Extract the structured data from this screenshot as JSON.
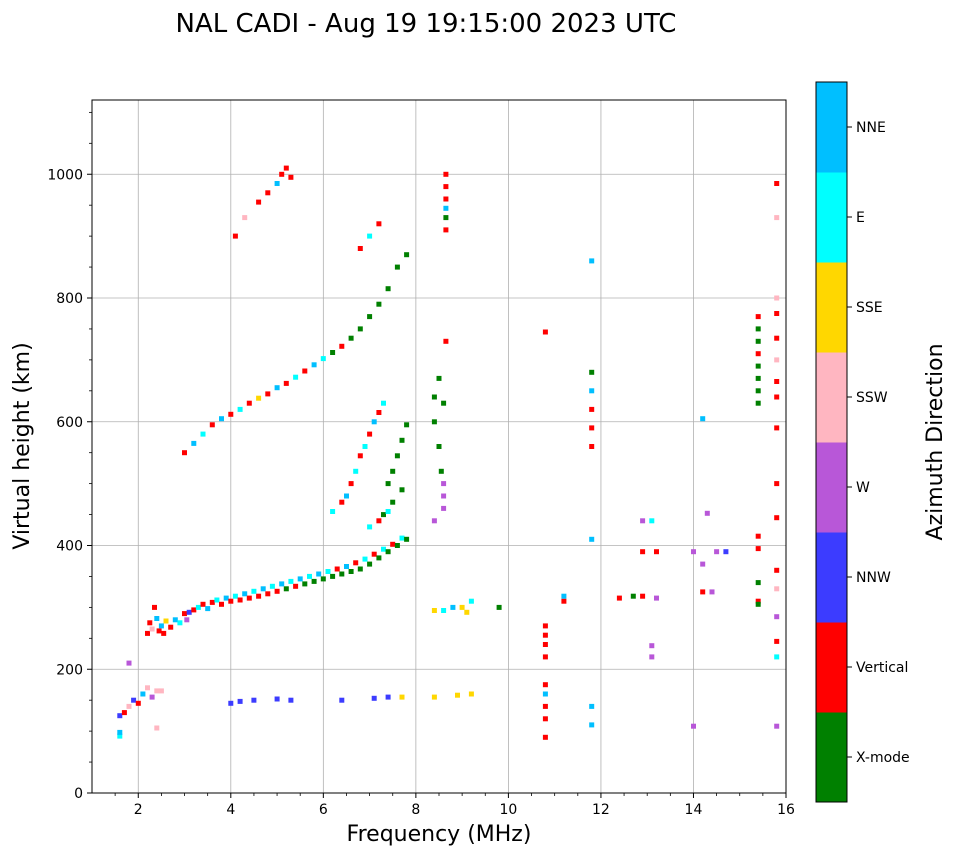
{
  "chart_data": {
    "type": "scatter",
    "title": "NAL CADI - Aug 19 19:15:00 2023 UTC",
    "xlabel": "Frequency (MHz)",
    "ylabel": "Virtual height (km)",
    "xlim": [
      1,
      16
    ],
    "ylim": [
      0,
      1120
    ],
    "xticks": [
      2,
      4,
      6,
      8,
      10,
      12,
      14,
      16
    ],
    "yticks": [
      0,
      200,
      400,
      600,
      800,
      1000
    ],
    "grid": true,
    "colorbar": {
      "title": "Azimuth Direction",
      "entries": [
        {
          "label": "X-mode",
          "color": "#008000"
        },
        {
          "label": "Vertical",
          "color": "#ff0000"
        },
        {
          "label": "NNW",
          "color": "#3c3cff"
        },
        {
          "label": "W",
          "color": "#b857d8"
        },
        {
          "label": "SSW",
          "color": "#ffb6c1"
        },
        {
          "label": "SSE",
          "color": "#ffd700"
        },
        {
          "label": "E",
          "color": "#00ffff"
        },
        {
          "label": "NNE",
          "color": "#00bfff"
        }
      ]
    },
    "points": [
      [
        1.6,
        92,
        "E"
      ],
      [
        1.6,
        98,
        "NNE"
      ],
      [
        1.6,
        125,
        "NNW"
      ],
      [
        1.7,
        130,
        "Vertical"
      ],
      [
        1.8,
        140,
        "SSW"
      ],
      [
        1.9,
        150,
        "NNW"
      ],
      [
        2.0,
        145,
        "Vertical"
      ],
      [
        2.1,
        160,
        "NNE"
      ],
      [
        2.2,
        170,
        "SSW"
      ],
      [
        2.4,
        165,
        "SSW"
      ],
      [
        2.3,
        155,
        "W"
      ],
      [
        2.5,
        165,
        "SSW"
      ],
      [
        2.4,
        105,
        "SSW"
      ],
      [
        1.8,
        210,
        "W"
      ],
      [
        2.2,
        258,
        "Vertical"
      ],
      [
        2.25,
        275,
        "Vertical"
      ],
      [
        2.3,
        265,
        "SSW"
      ],
      [
        2.35,
        300,
        "Vertical"
      ],
      [
        2.4,
        282,
        "NNE"
      ],
      [
        2.45,
        262,
        "Vertical"
      ],
      [
        2.5,
        270,
        "NNE"
      ],
      [
        2.55,
        258,
        "Vertical"
      ],
      [
        2.6,
        278,
        "SSE"
      ],
      [
        2.7,
        268,
        "Vertical"
      ],
      [
        2.8,
        280,
        "NNE"
      ],
      [
        2.9,
        275,
        "E"
      ],
      [
        3.0,
        290,
        "Vertical"
      ],
      [
        3.05,
        280,
        "W"
      ],
      [
        3.1,
        292,
        "NNW"
      ],
      [
        3.2,
        296,
        "Vertical"
      ],
      [
        3.3,
        300,
        "E"
      ],
      [
        3.4,
        305,
        "Vertical"
      ],
      [
        3.5,
        298,
        "NNE"
      ],
      [
        3.6,
        308,
        "Vertical"
      ],
      [
        3.7,
        312,
        "E"
      ],
      [
        3.8,
        305,
        "Vertical"
      ],
      [
        3.9,
        315,
        "NNE"
      ],
      [
        4.0,
        310,
        "Vertical"
      ],
      [
        4.1,
        318,
        "E"
      ],
      [
        4.2,
        312,
        "Vertical"
      ],
      [
        4.3,
        322,
        "NNE"
      ],
      [
        4.4,
        315,
        "Vertical"
      ],
      [
        4.5,
        326,
        "E"
      ],
      [
        4.6,
        318,
        "Vertical"
      ],
      [
        4.7,
        330,
        "NNE"
      ],
      [
        4.8,
        322,
        "Vertical"
      ],
      [
        4.9,
        334,
        "E"
      ],
      [
        5.0,
        326,
        "Vertical"
      ],
      [
        5.1,
        338,
        "NNE"
      ],
      [
        5.2,
        330,
        "X-mode"
      ],
      [
        5.3,
        342,
        "E"
      ],
      [
        5.4,
        334,
        "Vertical"
      ],
      [
        5.5,
        346,
        "NNE"
      ],
      [
        5.6,
        338,
        "X-mode"
      ],
      [
        5.7,
        350,
        "E"
      ],
      [
        5.8,
        342,
        "X-mode"
      ],
      [
        5.9,
        354,
        "NNE"
      ],
      [
        6.0,
        346,
        "X-mode"
      ],
      [
        6.1,
        358,
        "E"
      ],
      [
        6.2,
        350,
        "X-mode"
      ],
      [
        6.3,
        362,
        "Vertical"
      ],
      [
        6.4,
        354,
        "X-mode"
      ],
      [
        6.5,
        366,
        "NNE"
      ],
      [
        6.6,
        358,
        "X-mode"
      ],
      [
        6.7,
        372,
        "Vertical"
      ],
      [
        6.8,
        362,
        "X-mode"
      ],
      [
        6.9,
        378,
        "E"
      ],
      [
        7.0,
        370,
        "X-mode"
      ],
      [
        7.1,
        386,
        "Vertical"
      ],
      [
        7.2,
        380,
        "X-mode"
      ],
      [
        7.3,
        394,
        "E"
      ],
      [
        7.4,
        390,
        "X-mode"
      ],
      [
        7.5,
        402,
        "Vertical"
      ],
      [
        7.6,
        400,
        "X-mode"
      ],
      [
        7.7,
        412,
        "E"
      ],
      [
        7.8,
        410,
        "X-mode"
      ],
      [
        6.2,
        455,
        "E"
      ],
      [
        6.4,
        470,
        "Vertical"
      ],
      [
        6.5,
        480,
        "NNE"
      ],
      [
        6.6,
        500,
        "Vertical"
      ],
      [
        6.7,
        520,
        "E"
      ],
      [
        6.8,
        545,
        "Vertical"
      ],
      [
        6.9,
        560,
        "E"
      ],
      [
        7.0,
        580,
        "Vertical"
      ],
      [
        7.1,
        600,
        "NNE"
      ],
      [
        7.2,
        615,
        "Vertical"
      ],
      [
        7.3,
        630,
        "E"
      ],
      [
        7.4,
        500,
        "X-mode"
      ],
      [
        7.5,
        520,
        "X-mode"
      ],
      [
        7.6,
        545,
        "X-mode"
      ],
      [
        7.7,
        570,
        "X-mode"
      ],
      [
        7.8,
        595,
        "X-mode"
      ],
      [
        7.3,
        450,
        "X-mode"
      ],
      [
        7.5,
        470,
        "X-mode"
      ],
      [
        7.7,
        490,
        "X-mode"
      ],
      [
        7.0,
        430,
        "E"
      ],
      [
        7.2,
        440,
        "Vertical"
      ],
      [
        7.4,
        455,
        "E"
      ],
      [
        3.0,
        550,
        "Vertical"
      ],
      [
        3.2,
        565,
        "NNE"
      ],
      [
        3.4,
        580,
        "E"
      ],
      [
        3.6,
        595,
        "Vertical"
      ],
      [
        3.8,
        605,
        "NNE"
      ],
      [
        4.0,
        612,
        "Vertical"
      ],
      [
        4.2,
        620,
        "E"
      ],
      [
        4.4,
        630,
        "Vertical"
      ],
      [
        4.6,
        638,
        "SSE"
      ],
      [
        4.8,
        645,
        "Vertical"
      ],
      [
        5.0,
        655,
        "NNE"
      ],
      [
        5.2,
        662,
        "Vertical"
      ],
      [
        5.4,
        672,
        "E"
      ],
      [
        5.6,
        682,
        "Vertical"
      ],
      [
        5.8,
        692,
        "NNE"
      ],
      [
        6.0,
        702,
        "E"
      ],
      [
        6.2,
        712,
        "X-mode"
      ],
      [
        6.4,
        722,
        "Vertical"
      ],
      [
        6.6,
        735,
        "X-mode"
      ],
      [
        6.8,
        750,
        "X-mode"
      ],
      [
        7.0,
        770,
        "X-mode"
      ],
      [
        7.2,
        790,
        "X-mode"
      ],
      [
        7.4,
        815,
        "X-mode"
      ],
      [
        7.6,
        850,
        "X-mode"
      ],
      [
        7.8,
        870,
        "X-mode"
      ],
      [
        6.8,
        880,
        "Vertical"
      ],
      [
        7.0,
        900,
        "E"
      ],
      [
        7.2,
        920,
        "Vertical"
      ],
      [
        4.1,
        900,
        "Vertical"
      ],
      [
        4.3,
        930,
        "SSW"
      ],
      [
        4.6,
        955,
        "Vertical"
      ],
      [
        4.8,
        970,
        "Vertical"
      ],
      [
        5.0,
        985,
        "NNE"
      ],
      [
        5.1,
        1000,
        "Vertical"
      ],
      [
        5.2,
        1010,
        "Vertical"
      ],
      [
        5.3,
        995,
        "Vertical"
      ],
      [
        4.0,
        145,
        "NNW"
      ],
      [
        4.2,
        148,
        "NNW"
      ],
      [
        4.5,
        150,
        "NNW"
      ],
      [
        5.0,
        152,
        "NNW"
      ],
      [
        5.3,
        150,
        "NNW"
      ],
      [
        6.4,
        150,
        "NNW"
      ],
      [
        7.1,
        153,
        "NNW"
      ],
      [
        7.4,
        155,
        "NNW"
      ],
      [
        7.7,
        155,
        "SSE"
      ],
      [
        8.4,
        155,
        "SSE"
      ],
      [
        8.9,
        158,
        "SSE"
      ],
      [
        9.2,
        160,
        "SSE"
      ],
      [
        8.6,
        295,
        "E"
      ],
      [
        8.8,
        300,
        "NNE"
      ],
      [
        9.0,
        300,
        "SSE"
      ],
      [
        9.2,
        310,
        "E"
      ],
      [
        8.4,
        295,
        "SSE"
      ],
      [
        9.1,
        292,
        "SSE"
      ],
      [
        9.8,
        300,
        "X-mode"
      ],
      [
        8.4,
        640,
        "X-mode"
      ],
      [
        8.4,
        600,
        "X-mode"
      ],
      [
        8.5,
        560,
        "X-mode"
      ],
      [
        8.55,
        520,
        "X-mode"
      ],
      [
        8.6,
        480,
        "W"
      ],
      [
        8.6,
        460,
        "W"
      ],
      [
        8.4,
        440,
        "W"
      ],
      [
        8.6,
        630,
        "X-mode"
      ],
      [
        8.5,
        670,
        "X-mode"
      ],
      [
        8.6,
        500,
        "W"
      ],
      [
        8.65,
        1000,
        "Vertical"
      ],
      [
        8.65,
        980,
        "Vertical"
      ],
      [
        8.65,
        960,
        "Vertical"
      ],
      [
        8.65,
        945,
        "NNE"
      ],
      [
        8.65,
        930,
        "X-mode"
      ],
      [
        8.65,
        910,
        "Vertical"
      ],
      [
        8.65,
        730,
        "Vertical"
      ],
      [
        10.8,
        270,
        "Vertical"
      ],
      [
        10.8,
        255,
        "Vertical"
      ],
      [
        10.8,
        240,
        "Vertical"
      ],
      [
        10.8,
        220,
        "Vertical"
      ],
      [
        10.8,
        175,
        "Vertical"
      ],
      [
        10.8,
        160,
        "NNE"
      ],
      [
        10.8,
        140,
        "Vertical"
      ],
      [
        10.8,
        120,
        "Vertical"
      ],
      [
        10.8,
        90,
        "Vertical"
      ],
      [
        10.8,
        745,
        "Vertical"
      ],
      [
        11.2,
        310,
        "Vertical"
      ],
      [
        11.2,
        318,
        "NNE"
      ],
      [
        11.8,
        860,
        "NNE"
      ],
      [
        11.8,
        680,
        "X-mode"
      ],
      [
        11.8,
        650,
        "NNE"
      ],
      [
        11.8,
        620,
        "Vertical"
      ],
      [
        11.8,
        590,
        "Vertical"
      ],
      [
        11.8,
        560,
        "Vertical"
      ],
      [
        11.8,
        410,
        "NNE"
      ],
      [
        11.8,
        140,
        "NNE"
      ],
      [
        11.8,
        110,
        "NNE"
      ],
      [
        12.4,
        315,
        "Vertical"
      ],
      [
        12.7,
        318,
        "X-mode"
      ],
      [
        12.9,
        318,
        "Vertical"
      ],
      [
        12.9,
        440,
        "W"
      ],
      [
        12.9,
        390,
        "Vertical"
      ],
      [
        13.2,
        390,
        "Vertical"
      ],
      [
        13.1,
        238,
        "W"
      ],
      [
        13.1,
        220,
        "W"
      ],
      [
        13.1,
        440,
        "E"
      ],
      [
        13.2,
        315,
        "W"
      ],
      [
        14.0,
        390,
        "W"
      ],
      [
        14.2,
        370,
        "W"
      ],
      [
        14.2,
        325,
        "Vertical"
      ],
      [
        14.4,
        325,
        "W"
      ],
      [
        14.5,
        390,
        "W"
      ],
      [
        14.7,
        390,
        "NNW"
      ],
      [
        14.2,
        605,
        "NNE"
      ],
      [
        14.3,
        452,
        "W"
      ],
      [
        14.0,
        108,
        "W"
      ],
      [
        15.4,
        770,
        "Vertical"
      ],
      [
        15.4,
        750,
        "X-mode"
      ],
      [
        15.4,
        730,
        "X-mode"
      ],
      [
        15.4,
        710,
        "Vertical"
      ],
      [
        15.4,
        690,
        "X-mode"
      ],
      [
        15.4,
        670,
        "X-mode"
      ],
      [
        15.4,
        650,
        "X-mode"
      ],
      [
        15.4,
        630,
        "X-mode"
      ],
      [
        15.4,
        415,
        "Vertical"
      ],
      [
        15.4,
        395,
        "Vertical"
      ],
      [
        15.4,
        340,
        "X-mode"
      ],
      [
        15.4,
        310,
        "Vertical"
      ],
      [
        15.4,
        305,
        "X-mode"
      ],
      [
        15.8,
        985,
        "Vertical"
      ],
      [
        15.8,
        930,
        "SSW"
      ],
      [
        15.8,
        800,
        "SSW"
      ],
      [
        15.8,
        775,
        "Vertical"
      ],
      [
        15.8,
        735,
        "Vertical"
      ],
      [
        15.8,
        700,
        "SSW"
      ],
      [
        15.8,
        665,
        "Vertical"
      ],
      [
        15.8,
        640,
        "Vertical"
      ],
      [
        15.8,
        590,
        "Vertical"
      ],
      [
        15.8,
        500,
        "Vertical"
      ],
      [
        15.8,
        445,
        "Vertical"
      ],
      [
        15.8,
        360,
        "Vertical"
      ],
      [
        15.8,
        330,
        "SSW"
      ],
      [
        15.8,
        285,
        "W"
      ],
      [
        15.8,
        245,
        "Vertical"
      ],
      [
        15.8,
        220,
        "E"
      ],
      [
        15.8,
        108,
        "W"
      ]
    ]
  }
}
